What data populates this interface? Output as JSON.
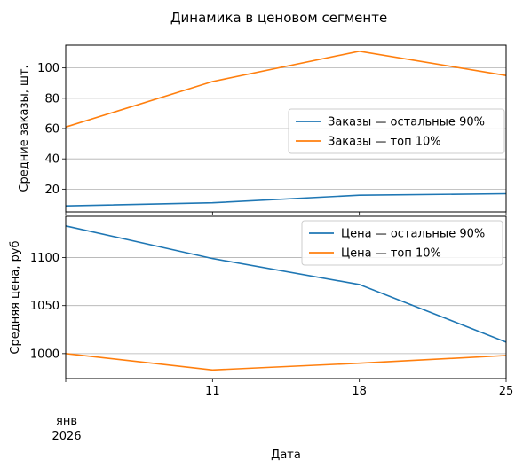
{
  "figure": {
    "title": "Динамика в ценовом сегменте",
    "xlabel": "Дата"
  },
  "colors": {
    "blue": "#1f77b4",
    "orange": "#ff7f0e",
    "grid": "#b0b0b0"
  },
  "chart_data": [
    {
      "type": "line",
      "ylabel": "Средние заказы, шт.",
      "x": [
        "2026-01-04",
        "2026-01-11",
        "2026-01-18",
        "2026-01-25"
      ],
      "xlim": [
        "2026-01-04",
        "2026-01-25"
      ],
      "ylim": [
        5,
        115
      ],
      "yticks": [
        20,
        40,
        60,
        80,
        100
      ],
      "grid": "y",
      "legend": "center-right",
      "series": [
        {
          "name": "Заказы — остальные 90%",
          "color": "blue",
          "values": [
            9,
            11,
            16,
            17
          ]
        },
        {
          "name": "Заказы — топ 10%",
          "color": "orange",
          "values": [
            61,
            91,
            111,
            95
          ]
        }
      ]
    },
    {
      "type": "line",
      "ylabel": "Средняя цена, руб",
      "x": [
        "2026-01-04",
        "2026-01-11",
        "2026-01-18",
        "2026-01-25"
      ],
      "xlim": [
        "2026-01-04",
        "2026-01-25"
      ],
      "ylim": [
        974,
        1143
      ],
      "yticks": [
        1000,
        1050,
        1100
      ],
      "grid": "y",
      "legend": "top-right",
      "series": [
        {
          "name": "Цена — остальные 90%",
          "color": "blue",
          "values": [
            1133,
            1099,
            1072,
            1012
          ]
        },
        {
          "name": "Цена — топ 10%",
          "color": "orange",
          "values": [
            1000,
            983,
            990,
            998
          ]
        }
      ]
    }
  ],
  "xaxis": {
    "ticks": [
      {
        "date": "2026-01-04",
        "label": ""
      },
      {
        "date": "2026-01-11",
        "label": "11"
      },
      {
        "date": "2026-01-18",
        "label": "18"
      },
      {
        "date": "2026-01-25",
        "label": "25"
      }
    ],
    "month_label": "янв",
    "year_label": "2026"
  }
}
